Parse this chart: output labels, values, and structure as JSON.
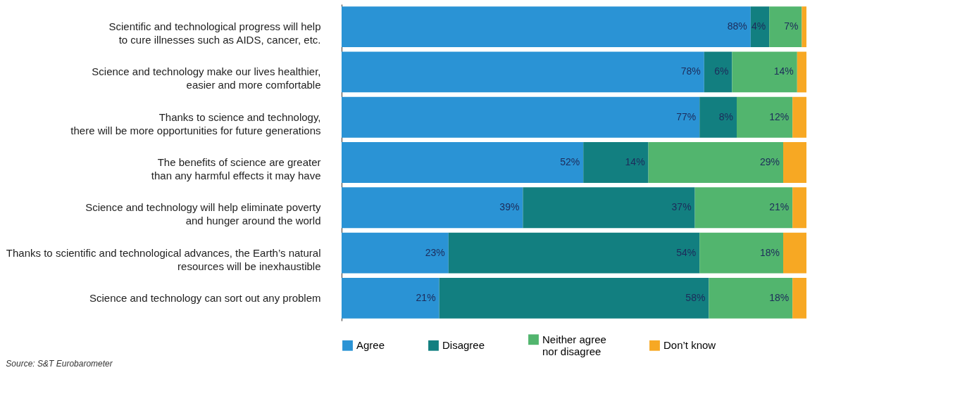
{
  "chart_data": {
    "type": "bar",
    "orientation": "horizontal",
    "stacked": true,
    "categories": [
      "Scientific and technological progress will help\nto cure illnesses such as AIDS, cancer, etc.",
      "Science and technology make our lives healthier,\neasier and more comfortable",
      "Thanks to science and technology,\nthere will be more opportunities for future generations",
      "The benefits of science are greater\nthan any harmful effects it may have",
      "Science and technology will help eliminate poverty\nand hunger around the world",
      "Thanks to scientific and technological advances, the Earth’s natural\nresources will be inexhaustible",
      "Science and technology can sort out any problem"
    ],
    "series": [
      {
        "name": "Agree",
        "color": "#2a93d5",
        "values": [
          88,
          78,
          77,
          52,
          39,
          23,
          21
        ],
        "value_labels": [
          "88%",
          "78%",
          "77%",
          "52%",
          "39%",
          "23%",
          "21%"
        ]
      },
      {
        "name": "Disagree",
        "color": "#127f80",
        "values": [
          4,
          6,
          8,
          14,
          37,
          54,
          58
        ],
        "value_labels": [
          "4%",
          "6%",
          "8%",
          "14%",
          "37%",
          "54%",
          "58%"
        ]
      },
      {
        "name": "Neither agree\nnor disagree",
        "color": "#52b56e",
        "values": [
          7,
          14,
          12,
          29,
          21,
          18,
          18
        ],
        "value_labels": [
          "7%",
          "14%",
          "12%",
          "29%",
          "21%",
          "18%",
          "18%"
        ]
      },
      {
        "name": "Don’t know",
        "color": "#f7a823",
        "values": [
          1,
          2,
          3,
          5,
          3,
          5,
          3
        ]
      }
    ],
    "xlim": [
      0,
      100
    ],
    "legend": "bottom",
    "annotations": [
      "Source: S&T Eurobarometer"
    ]
  }
}
